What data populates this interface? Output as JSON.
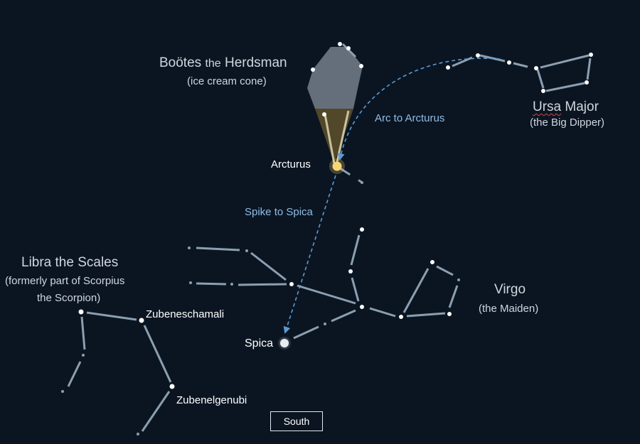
{
  "bootes": {
    "title_main": "Boötes",
    "title_the": "the",
    "title_rest": "Herdsman",
    "subtitle": "(ice cream cone)"
  },
  "ursa_major": {
    "title_word1": "Ursa",
    "title_word2": "Major",
    "subtitle": "(the Big Dipper)"
  },
  "virgo": {
    "title": "Virgo",
    "subtitle": "(the Maiden)"
  },
  "libra": {
    "title": "Libra the Scales",
    "subtitle_line1": "(formerly part of Scorpius",
    "subtitle_line2": "the Scorpion)"
  },
  "stars": {
    "arcturus": "Arcturus",
    "spica": "Spica",
    "zubeneschamali": "Zubeneschamali",
    "zubenelgenubi": "Zubenelgenubi"
  },
  "arrows": {
    "arc_label": "Arc to Arcturus",
    "spike_label": "Spike to Spica"
  },
  "compass": {
    "direction": "South"
  },
  "colors": {
    "background": "#0b1522",
    "constellation_line": "#8c9fb0",
    "arrow": "#5b9bd5",
    "arcturus": "#f7d774",
    "cone_fill": "#6b5a2c",
    "scoop_fill": "#8b95a3"
  }
}
